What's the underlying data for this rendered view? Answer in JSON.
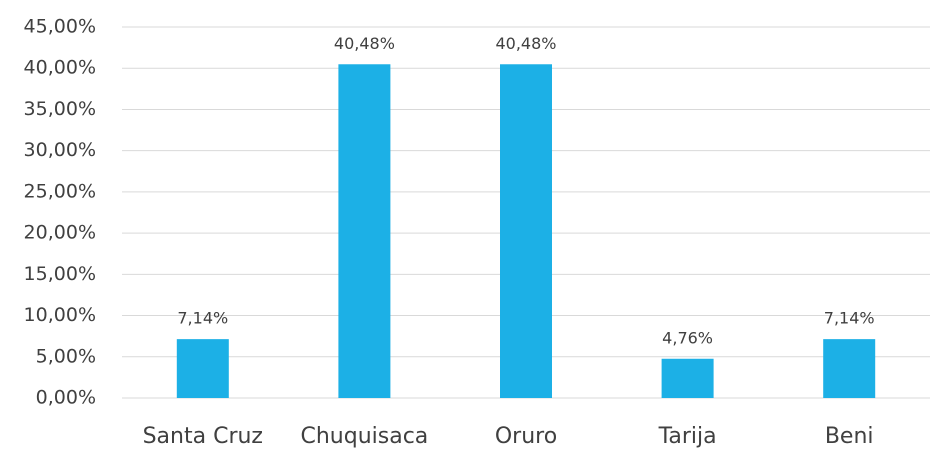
{
  "chart_data": {
    "type": "bar",
    "categories": [
      "Santa Cruz",
      "Chuquisaca",
      "Oruro",
      "Tarija",
      "Beni"
    ],
    "values": [
      7.14,
      40.48,
      40.48,
      4.76,
      7.14
    ],
    "value_labels": [
      "7,14%",
      "40,48%",
      "40,48%",
      "4,76%",
      "7,14%"
    ],
    "color": "#1cb0e6",
    "ylim": [
      0,
      45
    ],
    "yticks": [
      {
        "value": 0,
        "label": "0,00%"
      },
      {
        "value": 5,
        "label": "5,00%"
      },
      {
        "value": 10,
        "label": "10,00%"
      },
      {
        "value": 15,
        "label": "15,00%"
      },
      {
        "value": 20,
        "label": "20,00%"
      },
      {
        "value": 25,
        "label": "25,00%"
      },
      {
        "value": 30,
        "label": "30,00%"
      },
      {
        "value": 35,
        "label": "35,00%"
      },
      {
        "value": 40,
        "label": "40,00%"
      },
      {
        "value": 45,
        "label": "45,00%"
      }
    ],
    "grid": true
  }
}
